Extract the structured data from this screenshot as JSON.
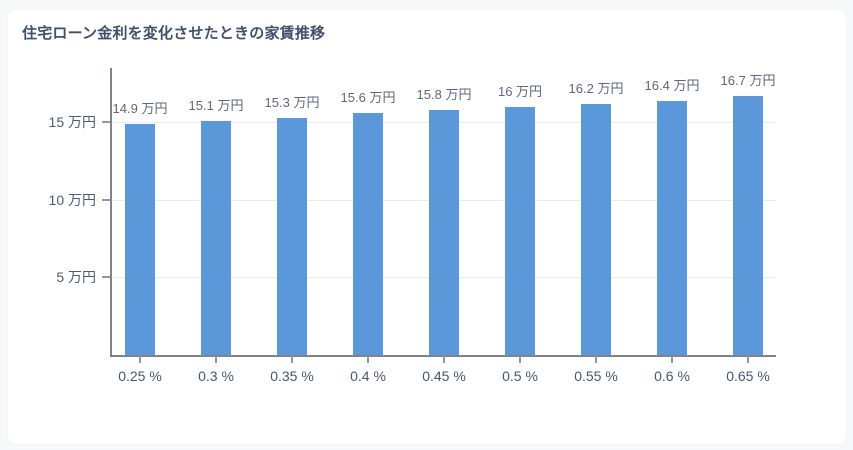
{
  "page": {
    "background": "#f7f8fa",
    "card_background": "#ffffff"
  },
  "header": {
    "title": "住宅ローン金利を変化させたときの家賃推移"
  },
  "chart_data": {
    "type": "bar",
    "title": "住宅ローン金利を変化させたときの家賃推移",
    "categories": [
      "0.25 %",
      "0.3 %",
      "0.35 %",
      "0.4 %",
      "0.45 %",
      "0.5 %",
      "0.55 %",
      "0.6 %",
      "0.65 %"
    ],
    "values": [
      14.9,
      15.1,
      15.3,
      15.6,
      15.8,
      16,
      16.2,
      16.4,
      16.7
    ],
    "bar_labels": [
      "14.9 万円",
      "15.1 万円",
      "15.3 万円",
      "15.6 万円",
      "15.8 万円",
      "16 万円",
      "16.2 万円",
      "16.4 万円",
      "16.7 万円"
    ],
    "xlabel": "",
    "ylabel": "",
    "y_ticks": [
      {
        "value": 5,
        "label": "5 万円"
      },
      {
        "value": 10,
        "label": "10 万円"
      },
      {
        "value": 15,
        "label": "15 万円"
      }
    ],
    "ylim": [
      0,
      18.5
    ],
    "grid": true,
    "legend": false,
    "unit": "万円",
    "colors": {
      "bar": "#5b98d9",
      "grid": "#e9ecf2",
      "axis": "#7d828b",
      "tick": "#9098a3",
      "title": "#42506a",
      "bar_label": "#5d6879",
      "x_tick_label": "#47566c",
      "y_tick_label": "#4d5c72"
    }
  }
}
